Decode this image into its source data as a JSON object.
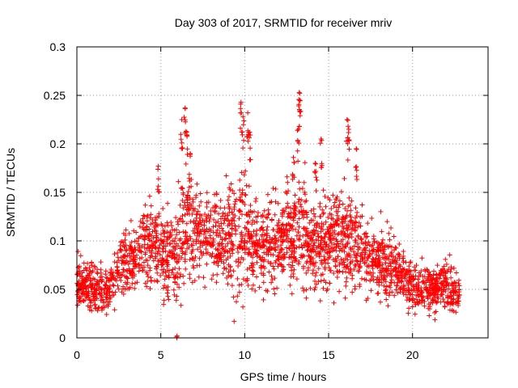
{
  "chart_data": {
    "type": "scatter",
    "title": "Day 303 of 2017, SRMTID for receiver mriv",
    "xlabel": "GPS time / hours",
    "ylabel": "SRMTID / TECUs",
    "xlim": [
      0,
      24.5
    ],
    "ylim": [
      0,
      0.3
    ],
    "xticks": [
      0,
      5,
      10,
      15,
      20
    ],
    "xtick_labels": [
      "0",
      "5",
      "10",
      "15",
      "20"
    ],
    "yticks": [
      0,
      0.05,
      0.1,
      0.15,
      0.2,
      0.25,
      0.3
    ],
    "ytick_labels": [
      "0",
      "0.05",
      "0.1",
      "0.15",
      "0.2",
      "0.25",
      "0.3"
    ],
    "grid": true,
    "marker": "+",
    "series": [
      {
        "name": "SRMTID",
        "color": "#ff0000",
        "profile": {
          "hours": [
            0,
            0.5,
            1,
            1.5,
            2,
            2.5,
            3,
            3.5,
            4,
            4.5,
            5,
            5.5,
            6,
            6.5,
            7,
            7.5,
            8,
            8.5,
            9,
            9.5,
            10,
            10.5,
            11,
            11.5,
            12,
            12.5,
            13,
            13.5,
            14,
            14.5,
            15,
            15.5,
            16,
            16.5,
            17,
            17.5,
            18,
            18.5,
            19,
            19.5,
            20,
            20.5,
            21,
            21.5,
            22,
            22.5,
            22.8
          ],
          "median": [
            0.058,
            0.055,
            0.05,
            0.048,
            0.05,
            0.075,
            0.08,
            0.082,
            0.095,
            0.1,
            0.09,
            0.085,
            0.088,
            0.12,
            0.11,
            0.105,
            0.1,
            0.098,
            0.1,
            0.11,
            0.11,
            0.1,
            0.095,
            0.098,
            0.1,
            0.105,
            0.105,
            0.11,
            0.1,
            0.1,
            0.1,
            0.105,
            0.1,
            0.1,
            0.09,
            0.085,
            0.08,
            0.075,
            0.07,
            0.062,
            0.055,
            0.05,
            0.05,
            0.052,
            0.055,
            0.048,
            0.045
          ],
          "spread": [
            0.02,
            0.02,
            0.02,
            0.018,
            0.018,
            0.025,
            0.025,
            0.028,
            0.035,
            0.035,
            0.035,
            0.035,
            0.04,
            0.05,
            0.04,
            0.035,
            0.035,
            0.035,
            0.04,
            0.05,
            0.05,
            0.04,
            0.035,
            0.035,
            0.035,
            0.04,
            0.045,
            0.045,
            0.04,
            0.04,
            0.04,
            0.04,
            0.045,
            0.04,
            0.035,
            0.03,
            0.03,
            0.028,
            0.025,
            0.022,
            0.02,
            0.018,
            0.018,
            0.018,
            0.02,
            0.018,
            0.016
          ]
        },
        "peaks": [
          {
            "x": 4.85,
            "y": 0.177
          },
          {
            "x": 6.25,
            "y": 0.225
          },
          {
            "x": 6.45,
            "y": 0.237
          },
          {
            "x": 6.55,
            "y": 0.212
          },
          {
            "x": 6.75,
            "y": 0.19
          },
          {
            "x": 9.78,
            "y": 0.243
          },
          {
            "x": 9.9,
            "y": 0.228
          },
          {
            "x": 10.18,
            "y": 0.232
          },
          {
            "x": 10.3,
            "y": 0.212
          },
          {
            "x": 13.25,
            "y": 0.253
          },
          {
            "x": 13.28,
            "y": 0.245
          },
          {
            "x": 13.2,
            "y": 0.215
          },
          {
            "x": 14.55,
            "y": 0.205
          },
          {
            "x": 16.1,
            "y": 0.225
          },
          {
            "x": 16.2,
            "y": 0.215
          },
          {
            "x": 16.65,
            "y": 0.195
          },
          {
            "x": 12.9,
            "y": 0.186
          },
          {
            "x": 14.2,
            "y": 0.18
          }
        ],
        "low_points": [
          {
            "x": 5.95,
            "y": 0.001
          },
          {
            "x": 5.96,
            "y": 0.0
          },
          {
            "x": 5.97,
            "y": 0.002
          }
        ]
      }
    ]
  }
}
